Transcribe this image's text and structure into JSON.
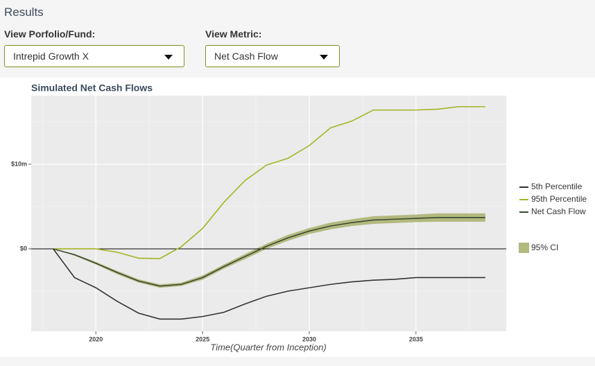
{
  "header": {
    "title": "Results"
  },
  "controls": [
    {
      "label": "View Porfolio/Fund:",
      "value": "Intrepid Growth X"
    },
    {
      "label": "View Metric:",
      "value": "Net Cash Flow"
    }
  ],
  "chart_data": {
    "type": "line",
    "title": "Simulated Net Cash Flows",
    "x_label": "Time(Quarter from Inception)",
    "x": [
      2018,
      2019,
      2020,
      2021,
      2022,
      2023,
      2024,
      2025,
      2026,
      2027,
      2028,
      2029,
      2030,
      2031,
      2032,
      2033,
      2034,
      2035,
      2036,
      2037,
      2038.25
    ],
    "series": [
      {
        "name": "5th Percentile",
        "color": "#333333",
        "values": [
          0,
          -3.4,
          -4.6,
          -6.2,
          -7.6,
          -8.3,
          -8.3,
          -8.0,
          -7.5,
          -6.5,
          -5.6,
          -5.0,
          -4.6,
          -4.2,
          -3.9,
          -3.7,
          -3.6,
          -3.4,
          -3.4,
          -3.4,
          -3.4
        ]
      },
      {
        "name": "95th Percentile",
        "color": "#a4b422",
        "values": [
          0,
          0,
          0,
          -0.4,
          -1.1,
          -1.15,
          0.25,
          2.4,
          5.5,
          8.1,
          9.9,
          10.7,
          12.2,
          14.3,
          15.1,
          16.4,
          16.4,
          16.4,
          16.5,
          16.8,
          16.8
        ]
      },
      {
        "name": "Net Cash Flow",
        "color": "#3a4a30",
        "values": [
          0,
          -0.7,
          -1.7,
          -2.8,
          -3.8,
          -4.4,
          -4.2,
          -3.4,
          -2.1,
          -0.9,
          0.3,
          1.3,
          2.1,
          2.7,
          3.1,
          3.4,
          3.5,
          3.6,
          3.7,
          3.7,
          3.7
        ]
      }
    ],
    "band": {
      "name": "95% CI",
      "color": "#b3b97f",
      "lower": [
        0,
        -0.8,
        -1.85,
        -3.0,
        -4.0,
        -4.6,
        -4.4,
        -3.65,
        -2.35,
        -1.2,
        0,
        0.95,
        1.75,
        2.3,
        2.7,
        2.95,
        3.05,
        3.15,
        3.2,
        3.2,
        3.2
      ],
      "upper": [
        0,
        -0.6,
        -1.55,
        -2.6,
        -3.6,
        -4.2,
        -4.0,
        -3.15,
        -1.85,
        -0.6,
        0.6,
        1.65,
        2.45,
        3.1,
        3.5,
        3.85,
        3.95,
        4.05,
        4.2,
        4.2,
        4.2
      ]
    },
    "hline": 0,
    "xlim": [
      2016.97,
      2039.23
    ],
    "ylim": [
      -9.75,
      18.1
    ],
    "xticks": [
      2020,
      2025,
      2030,
      2035
    ],
    "xminor": [
      2017.5,
      2022.5,
      2027.5,
      2032.5,
      2037.5
    ],
    "yticks": [
      {
        "value": 0,
        "label": "$0"
      },
      {
        "value": 10,
        "label": "$10m"
      }
    ],
    "yminor": [
      -5,
      5,
      15
    ],
    "grid": true,
    "legend": "right"
  }
}
